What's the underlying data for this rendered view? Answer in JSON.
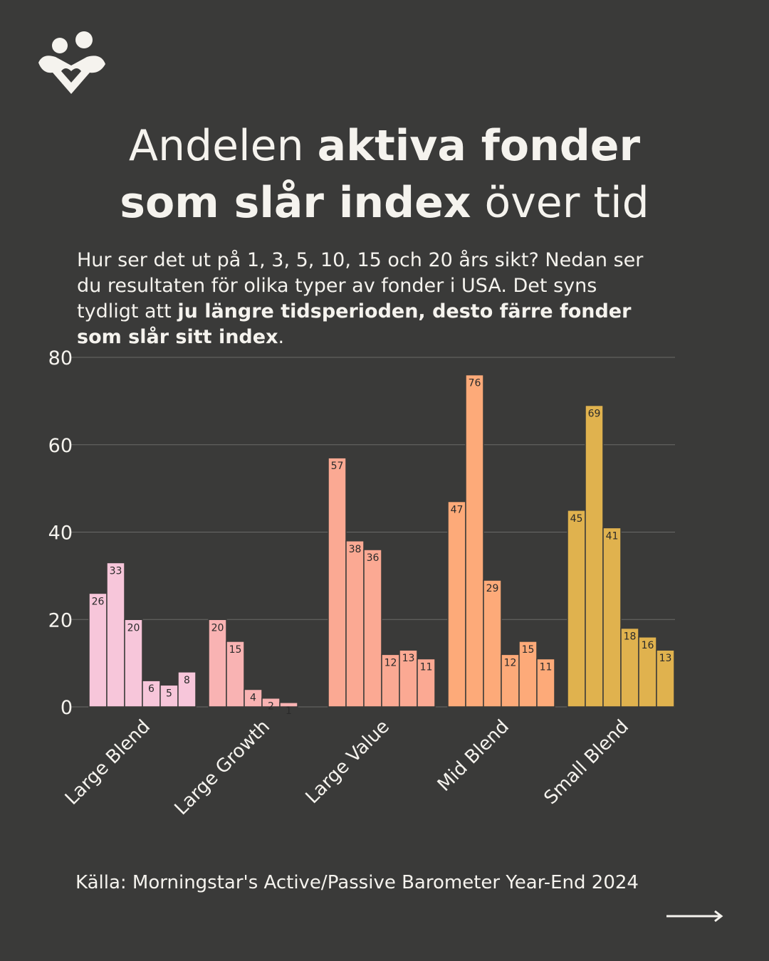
{
  "header": {
    "title": [
      [
        {
          "text": "Andelen "
        },
        {
          "text": "aktiva fonder",
          "bold": true
        }
      ],
      [
        {
          "text": "som slår index",
          "bold": true
        },
        {
          "text": " över tid"
        }
      ]
    ],
    "subtitle": [
      [
        {
          "text": "Hur ser det ut på 1, 3, 5, 10, 15 och 20 års sikt? Nedan ser"
        }
      ],
      [
        {
          "text": "du resultaten för olika typer av fonder i USA. Det syns"
        }
      ],
      [
        {
          "text": "tydligt att "
        },
        {
          "text": "ju längre tidsperioden, desto färre fonder",
          "bold": true
        }
      ],
      [
        {
          "text": "som slår sitt index",
          "bold": true
        },
        {
          "text": "."
        }
      ]
    ]
  },
  "chart_data": {
    "type": "grouped-bar",
    "categories": [
      "Large Blend",
      "Large Growth",
      "Large Value",
      "Mid Blend",
      "Small Blend"
    ],
    "values": [
      [
        26,
        33,
        20,
        6,
        5,
        8
      ],
      [
        20,
        15,
        4,
        2,
        1,
        null
      ],
      [
        57,
        38,
        36,
        12,
        13,
        11
      ],
      [
        47,
        76,
        29,
        12,
        15,
        11
      ],
      [
        45,
        69,
        41,
        18,
        16,
        13
      ]
    ],
    "colors": [
      "#f7c6da",
      "#f9b3b3",
      "#fba993",
      "#fdaa79",
      "#e0b24e"
    ],
    "ylim": [
      0,
      80
    ],
    "yticks": [
      0,
      20,
      40,
      60,
      80
    ],
    "grid": true
  },
  "source": "Källa: Morningstar's Active/Passive Barometer Year-End 2024"
}
